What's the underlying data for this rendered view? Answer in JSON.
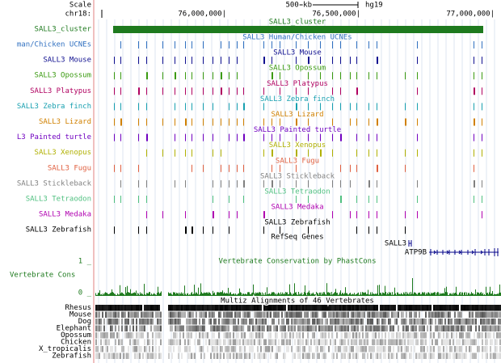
{
  "header": {
    "scale": "Scale",
    "chrom": "chr18:",
    "scale_bar": "500 kb",
    "assembly": "hg19",
    "positions": [
      "76,000,000|",
      "76,500,000|",
      "77,000,000|"
    ]
  },
  "cluster": {
    "label": "SALL3_cluster",
    "center": "SALL3_cluster",
    "color": "#1e7a1e"
  },
  "tracks": [
    {
      "label": "man/Chicken UCNEs",
      "center": "SALL3 Human/Chicken UCNEs",
      "color": "#3070c0"
    },
    {
      "label": "SALL3 Mouse",
      "center": "SALL3 Mouse",
      "color": "#101090"
    },
    {
      "label": "SALL3 Opossum",
      "center": "SALL3 Opossum",
      "color": "#3a9a10"
    },
    {
      "label": "SALL3 Platypus",
      "center": "SALL3 Platypus",
      "color": "#b00060"
    },
    {
      "label": "SALL3 Zebra finch",
      "center": "SALL3 Zebra finch",
      "color": "#18a0b0"
    },
    {
      "label": "SALL3 Lizard",
      "center": "SALL3 Lizard",
      "color": "#d08000"
    },
    {
      "label": "L3 Painted turtle",
      "center": "SALL3 Painted turtle",
      "color": "#7000c0"
    },
    {
      "label": "SALL3 Xenopus",
      "center": "SALL3 Xenopus",
      "color": "#b0b000"
    },
    {
      "label": "SALL3 Fugu",
      "center": "SALL3 Fugu",
      "color": "#e06040"
    },
    {
      "label": "SALL3 Stickleback",
      "center": "SALL3 Stickleback",
      "color": "#808080"
    },
    {
      "label": "SALL3 Tetraodon",
      "center": "SALL3 Tetraodon",
      "color": "#50c080"
    },
    {
      "label": "SALL3 Medaka",
      "center": "SALL3 Medaka",
      "color": "#b000b0"
    },
    {
      "label": "SALL3 Zebrafish",
      "center": "SALL3 Zebrafish",
      "color": "#000000"
    }
  ],
  "refseq": {
    "title": "RefSeq Genes",
    "genes": [
      "SALL3",
      "ATP9B"
    ]
  },
  "conservation": {
    "title": "Vertebrate Conservation by PhastCons",
    "label": "Vertebrate Cons",
    "top": "1 _",
    "bottom": "0 _",
    "color": "#1e7a1e"
  },
  "multiz": {
    "title": "Multiz Alignments of 46 Vertebrates",
    "species": [
      "Rhesus",
      "Mouse",
      "Dog",
      "Elephant",
      "Opossum",
      "Chicken",
      "X_tropicalis",
      "Zebrafish"
    ]
  }
}
